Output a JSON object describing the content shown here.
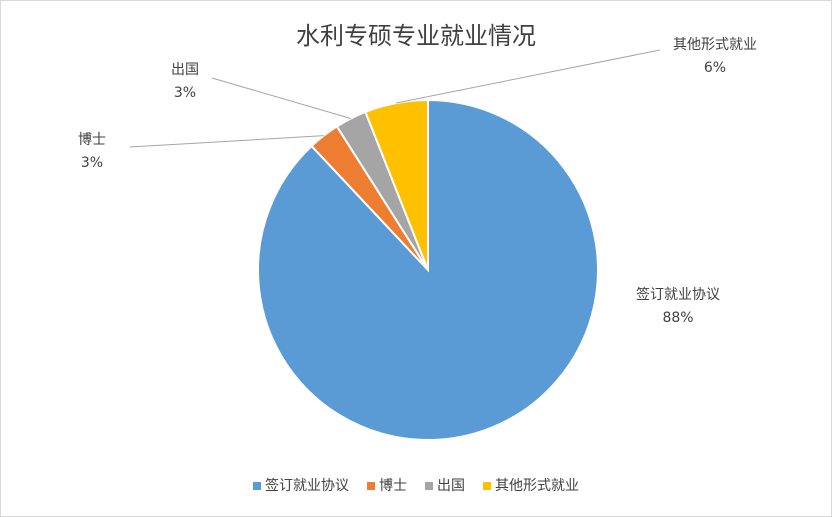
{
  "chart_data": {
    "type": "pie",
    "title": "水利专硕专业就业情况",
    "categories": [
      "签订就业协议",
      "博士",
      "出国",
      "其他形式就业"
    ],
    "values": [
      88,
      3,
      3,
      6
    ],
    "value_labels": [
      "88%",
      "3%",
      "3%",
      "6%"
    ],
    "colors": [
      "#5b9bd5",
      "#ed7d31",
      "#a5a5a5",
      "#ffc000"
    ],
    "legend": "bottom"
  }
}
